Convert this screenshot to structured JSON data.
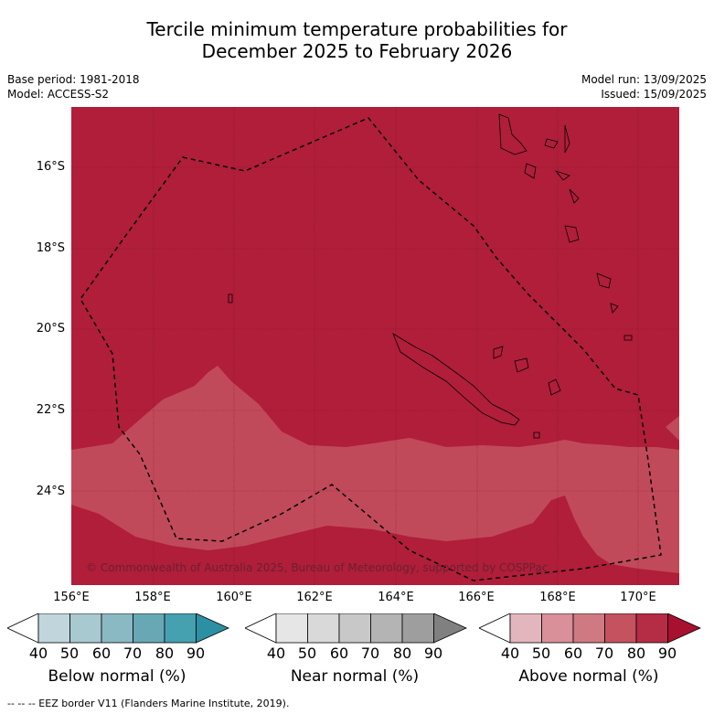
{
  "title_line1": "Tercile minimum temperature probabilities for",
  "title_line2": "December 2025 to February 2026",
  "base_period": "Base period: 1981-2018",
  "model": "Model: ACCESS-S2",
  "model_run": "Model run: 13/09/2025",
  "issued": "Issued: 15/09/2025",
  "map": {
    "lat_labels": [
      "16°S",
      "18°S",
      "20°S",
      "22°S",
      "24°S"
    ],
    "lon_labels": [
      "156°E",
      "158°E",
      "160°E",
      "162°E",
      "164°E",
      "166°E",
      "168°E",
      "170°E"
    ],
    "copyright": "© Commonwealth of Australia 2025, Bureau of Meteorology, supported by COSPPac",
    "dominant_category": "Above normal 80-90%"
  },
  "colorbars": [
    {
      "title": "Below normal (%)",
      "ticks": [
        "40",
        "50",
        "60",
        "70",
        "80",
        "90"
      ],
      "colors": [
        "#ffffff",
        "#c0d6dc",
        "#a8c9cf",
        "#8ab9c3",
        "#68a8b5",
        "#45a0b0",
        "#2b90a4"
      ]
    },
    {
      "title": "Near normal (%)",
      "ticks": [
        "40",
        "50",
        "60",
        "70",
        "80",
        "90"
      ],
      "colors": [
        "#ffffff",
        "#e6e6e6",
        "#d9d9d9",
        "#c8c8c8",
        "#b4b4b4",
        "#9e9e9e",
        "#808080"
      ]
    },
    {
      "title": "Above normal (%)",
      "ticks": [
        "40",
        "50",
        "60",
        "70",
        "80",
        "90"
      ],
      "colors": [
        "#ffffff",
        "#e3b6bd",
        "#d99098",
        "#cf7a82",
        "#c4525f",
        "#b52c45",
        "#a81030"
      ]
    }
  ],
  "footer": "--  --  -- EEZ border V11 (Flanders Marine Institute, 2019)."
}
